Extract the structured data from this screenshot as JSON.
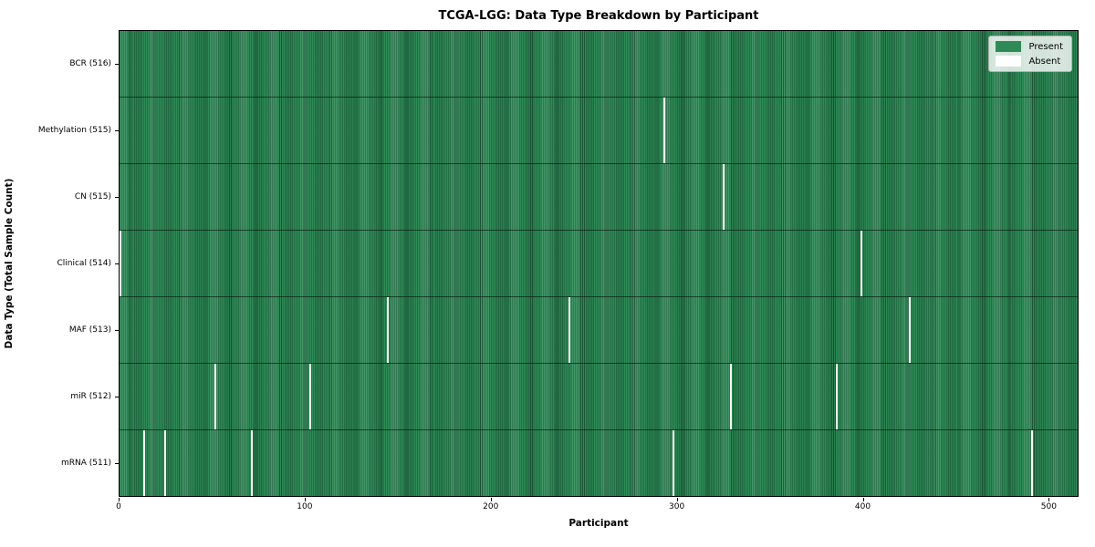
{
  "chart_data": {
    "type": "heatmap",
    "title": "TCGA-LGG: Data Type Breakdown by Participant",
    "xlabel": "Participant",
    "ylabel": "Data Type (Total Sample Count)",
    "xlim": [
      0,
      516
    ],
    "x_ticks": [
      0,
      100,
      200,
      300,
      400,
      500
    ],
    "n_participants": 516,
    "grid": false,
    "legend_position": "upper right",
    "legend": [
      {
        "label": "Present",
        "color": "#2e8b57"
      },
      {
        "label": "Absent",
        "color": "#ffffff"
      }
    ],
    "colors": {
      "present": "#2e8b57",
      "absent": "#ffffff",
      "cell_edge": "#123d26"
    },
    "rows": [
      {
        "label": "BCR (516)",
        "data_type": "BCR",
        "total_samples": 516,
        "absent_count": 0,
        "absent_participants": []
      },
      {
        "label": "Methylation (515)",
        "data_type": "Methylation",
        "total_samples": 515,
        "absent_count": 1,
        "absent_participants": [
          293
        ]
      },
      {
        "label": "CN (515)",
        "data_type": "CN",
        "total_samples": 515,
        "absent_count": 1,
        "absent_participants": [
          325
        ]
      },
      {
        "label": "Clinical (514)",
        "data_type": "Clinical",
        "total_samples": 514,
        "absent_count": 2,
        "absent_participants": [
          0,
          399
        ]
      },
      {
        "label": "MAF (513)",
        "data_type": "MAF",
        "total_samples": 513,
        "absent_count": 3,
        "absent_participants": [
          144,
          242,
          425
        ]
      },
      {
        "label": "miR (512)",
        "data_type": "miR",
        "total_samples": 512,
        "absent_count": 4,
        "absent_participants": [
          51,
          102,
          329,
          386
        ]
      },
      {
        "label": "mRNA (511)",
        "data_type": "mRNA",
        "total_samples": 511,
        "absent_count": 5,
        "absent_participants": [
          13,
          24,
          71,
          298,
          491
        ]
      }
    ]
  }
}
